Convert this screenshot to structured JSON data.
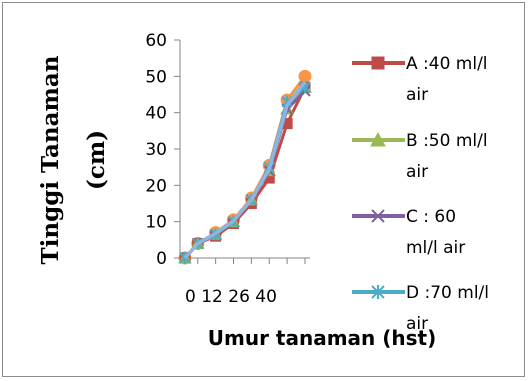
{
  "chart_data": {
    "type": "line",
    "ylabel": "Tinggi Tanaman (cm)",
    "ylabel_lines": [
      "Tinggi Tanaman",
      "(cm)"
    ],
    "xlabel": "Umur tanaman (hst)",
    "ylim": [
      0,
      60
    ],
    "yticks": [
      0,
      10,
      20,
      30,
      40,
      50,
      60
    ],
    "x_tick_labels": [
      "0",
      "12",
      "26",
      "40"
    ],
    "x": [
      0,
      5,
      12,
      19,
      26,
      33,
      40,
      47
    ],
    "legend_position": "right",
    "grid": false,
    "series": [
      {
        "name": "A :40 ml/l air",
        "label_lines": [
          "A :40 ml/l",
          "air"
        ],
        "color": "#be4b48",
        "marker": "square",
        "values": [
          0,
          4,
          6,
          9.5,
          15,
          22,
          37,
          47
        ]
      },
      {
        "name": "B :50 ml/l air",
        "label_lines": [
          "B :50 ml/l",
          "air"
        ],
        "color": "#98b954",
        "marker": "triangle",
        "values": [
          0,
          4,
          6.5,
          10,
          16,
          24,
          41,
          47
        ]
      },
      {
        "name": "C : 60 ml/l air",
        "label_lines": [
          "C : 60",
          "ml/l air"
        ],
        "color": "#7d60a0",
        "marker": "x",
        "values": [
          0,
          4,
          6.5,
          10,
          16,
          24,
          41,
          46
        ]
      },
      {
        "name": "D :70 ml/l air",
        "label_lines": [
          "D :70 ml/l",
          "air"
        ],
        "color": "#4bacc6",
        "marker": "asterisk",
        "values": [
          0,
          4,
          6.5,
          10,
          16,
          25,
          43,
          47
        ]
      },
      {
        "name": "",
        "color": "#f79646",
        "marker": "circle",
        "values": [
          0,
          4,
          7,
          10.5,
          16.5,
          25.5,
          43.5,
          50
        ]
      },
      {
        "name": "",
        "color": "#8eb4e3",
        "marker": "none",
        "values": [
          0,
          4,
          6.8,
          10.2,
          16,
          24.5,
          42,
          48.5
        ]
      }
    ]
  }
}
